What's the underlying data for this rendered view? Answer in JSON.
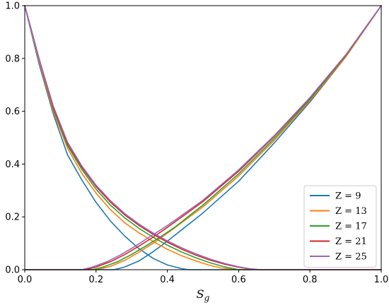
{
  "chart_data": {
    "type": "line",
    "xlabel": "S_g",
    "ylabel": "",
    "title": "",
    "xlim": [
      0.0,
      1.0
    ],
    "ylim": [
      0.0,
      1.0
    ],
    "xticks": [
      "0.0",
      "0.2",
      "0.4",
      "0.6",
      "0.8",
      "1.0"
    ],
    "yticks": [
      "0.0",
      "0.2",
      "0.4",
      "0.6",
      "0.8",
      "1.0"
    ],
    "grid": false,
    "legend_position": "lower-right",
    "series": [
      {
        "name": "Z = 9",
        "color": "#1f77b4",
        "curves": [
          {
            "x": [
              0.0,
              0.04,
              0.08,
              0.12,
              0.16,
              0.2,
              0.24,
              0.28,
              0.32,
              0.36,
              0.4,
              0.44,
              0.46,
              0.48,
              1.0
            ],
            "y": [
              1.0,
              0.78,
              0.59,
              0.435,
              0.34,
              0.255,
              0.185,
              0.128,
              0.08,
              0.043,
              0.018,
              0.004,
              0.0,
              0.0,
              0.0
            ]
          },
          {
            "x": [
              0.0,
              0.25,
              0.28,
              0.32,
              0.36,
              0.4,
              0.5,
              0.6,
              0.7,
              0.8,
              0.9,
              1.0
            ],
            "y": [
              0.0,
              0.0,
              0.01,
              0.033,
              0.068,
              0.108,
              0.215,
              0.335,
              0.48,
              0.635,
              0.805,
              1.0
            ]
          }
        ]
      },
      {
        "name": "Z = 13",
        "color": "#ff7f0e",
        "curves": [
          {
            "x": [
              0.0,
              0.04,
              0.08,
              0.12,
              0.16,
              0.2,
              0.24,
              0.28,
              0.32,
              0.36,
              0.4,
              0.44,
              0.48,
              0.52,
              0.55,
              0.58,
              0.6,
              1.0
            ],
            "y": [
              1.0,
              0.79,
              0.6,
              0.46,
              0.365,
              0.29,
              0.228,
              0.178,
              0.14,
              0.107,
              0.077,
              0.053,
              0.033,
              0.016,
              0.007,
              0.002,
              0.0,
              0.0
            ]
          },
          {
            "x": [
              0.0,
              0.2,
              0.24,
              0.28,
              0.32,
              0.36,
              0.4,
              0.5,
              0.6,
              0.7,
              0.8,
              0.9,
              1.0
            ],
            "y": [
              0.0,
              0.0,
              0.012,
              0.035,
              0.066,
              0.1,
              0.138,
              0.238,
              0.355,
              0.49,
              0.64,
              0.805,
              1.0
            ]
          }
        ]
      },
      {
        "name": "Z = 17",
        "color": "#2ca02c",
        "curves": [
          {
            "x": [
              0.0,
              0.04,
              0.08,
              0.12,
              0.16,
              0.2,
              0.24,
              0.28,
              0.32,
              0.36,
              0.4,
              0.44,
              0.48,
              0.52,
              0.56,
              0.6,
              1.0
            ],
            "y": [
              1.0,
              0.8,
              0.61,
              0.47,
              0.38,
              0.305,
              0.245,
              0.197,
              0.157,
              0.123,
              0.093,
              0.067,
              0.045,
              0.026,
              0.011,
              0.0,
              0.0
            ]
          },
          {
            "x": [
              0.0,
              0.19,
              0.22,
              0.26,
              0.3,
              0.34,
              0.38,
              0.42,
              0.5,
              0.6,
              0.7,
              0.8,
              0.9,
              1.0
            ],
            "y": [
              0.0,
              0.0,
              0.01,
              0.03,
              0.058,
              0.09,
              0.124,
              0.16,
              0.245,
              0.363,
              0.497,
              0.645,
              0.81,
              1.0
            ]
          }
        ]
      },
      {
        "name": "Z = 21",
        "color": "#d62728",
        "curves": [
          {
            "x": [
              0.0,
              0.04,
              0.08,
              0.12,
              0.16,
              0.2,
              0.24,
              0.28,
              0.32,
              0.36,
              0.4,
              0.44,
              0.48,
              0.52,
              0.56,
              0.6,
              0.63,
              0.66,
              1.0
            ],
            "y": [
              1.0,
              0.8,
              0.615,
              0.478,
              0.388,
              0.315,
              0.256,
              0.208,
              0.168,
              0.134,
              0.104,
              0.078,
              0.055,
              0.036,
              0.021,
              0.009,
              0.003,
              0.0,
              0.0
            ]
          },
          {
            "x": [
              0.0,
              0.17,
              0.2,
              0.24,
              0.28,
              0.32,
              0.36,
              0.4,
              0.5,
              0.6,
              0.7,
              0.8,
              0.9,
              1.0
            ],
            "y": [
              0.0,
              0.0,
              0.01,
              0.03,
              0.057,
              0.089,
              0.123,
              0.16,
              0.258,
              0.373,
              0.505,
              0.65,
              0.812,
              1.0
            ]
          }
        ]
      },
      {
        "name": "Z = 25",
        "color": "#9467bd",
        "curves": [
          {
            "x": [
              0.0,
              0.04,
              0.08,
              0.12,
              0.16,
              0.2,
              0.24,
              0.28,
              0.32,
              0.36,
              0.4,
              0.44,
              0.48,
              0.52,
              0.56,
              0.6,
              0.63,
              0.66,
              1.0
            ],
            "y": [
              1.0,
              0.8,
              0.62,
              0.483,
              0.393,
              0.32,
              0.262,
              0.213,
              0.173,
              0.139,
              0.109,
              0.083,
              0.06,
              0.04,
              0.024,
              0.011,
              0.004,
              0.0,
              0.0
            ]
          },
          {
            "x": [
              0.0,
              0.16,
              0.19,
              0.23,
              0.27,
              0.31,
              0.35,
              0.4,
              0.5,
              0.6,
              0.7,
              0.8,
              0.9,
              1.0
            ],
            "y": [
              0.0,
              0.0,
              0.01,
              0.03,
              0.057,
              0.089,
              0.124,
              0.167,
              0.263,
              0.378,
              0.508,
              0.652,
              0.813,
              1.0
            ]
          }
        ]
      }
    ]
  }
}
